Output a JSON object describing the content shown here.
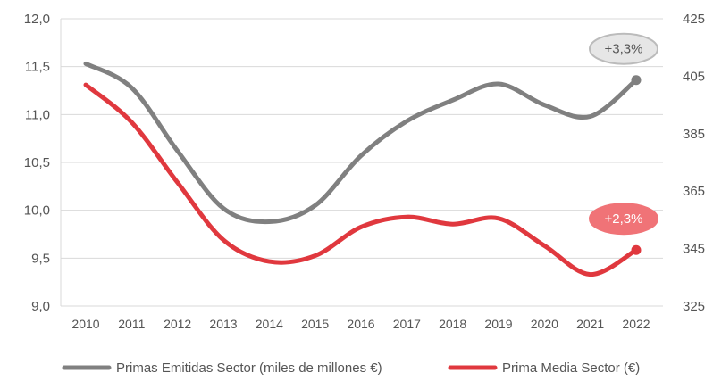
{
  "chart_data": {
    "type": "line",
    "title": "",
    "x": [
      "2010",
      "2011",
      "2012",
      "2013",
      "2014",
      "2015",
      "2016",
      "2017",
      "2018",
      "2019",
      "2020",
      "2021",
      "2022"
    ],
    "y_left": {
      "ticks": [
        "12,0",
        "11,5",
        "11,0",
        "10,5",
        "10,0",
        "9,5",
        "9,0"
      ],
      "ylim": [
        9.0,
        12.0
      ]
    },
    "y_right": {
      "ticks": [
        "425",
        "405",
        "385",
        "365",
        "345",
        "325"
      ],
      "ylim": [
        325,
        425
      ]
    },
    "series": [
      {
        "name": "Primas Emitidas Sector (miles de millones €)",
        "axis": "left",
        "color": "#808080",
        "values": [
          11.53,
          11.28,
          10.62,
          10.02,
          9.88,
          10.05,
          10.57,
          10.93,
          11.15,
          11.32,
          11.1,
          10.98,
          11.36
        ]
      },
      {
        "name": "Prima Media Sector (€)",
        "axis": "right",
        "color": "#e0383e",
        "values": [
          402,
          389,
          368,
          348,
          340.5,
          342.5,
          352.5,
          356,
          353.5,
          355.5,
          346,
          336,
          344.5
        ]
      }
    ],
    "annotations": [
      {
        "text": "+3,3%",
        "series": 0,
        "fill": "#e6e6e6",
        "stroke": "#bbbbbb",
        "text_color": "#555555"
      },
      {
        "text": "+2,3%",
        "series": 1,
        "fill": "#f07377",
        "stroke": "#f07377",
        "text_color": "#ffffff"
      }
    ],
    "grid": true,
    "legend_position": "bottom"
  }
}
